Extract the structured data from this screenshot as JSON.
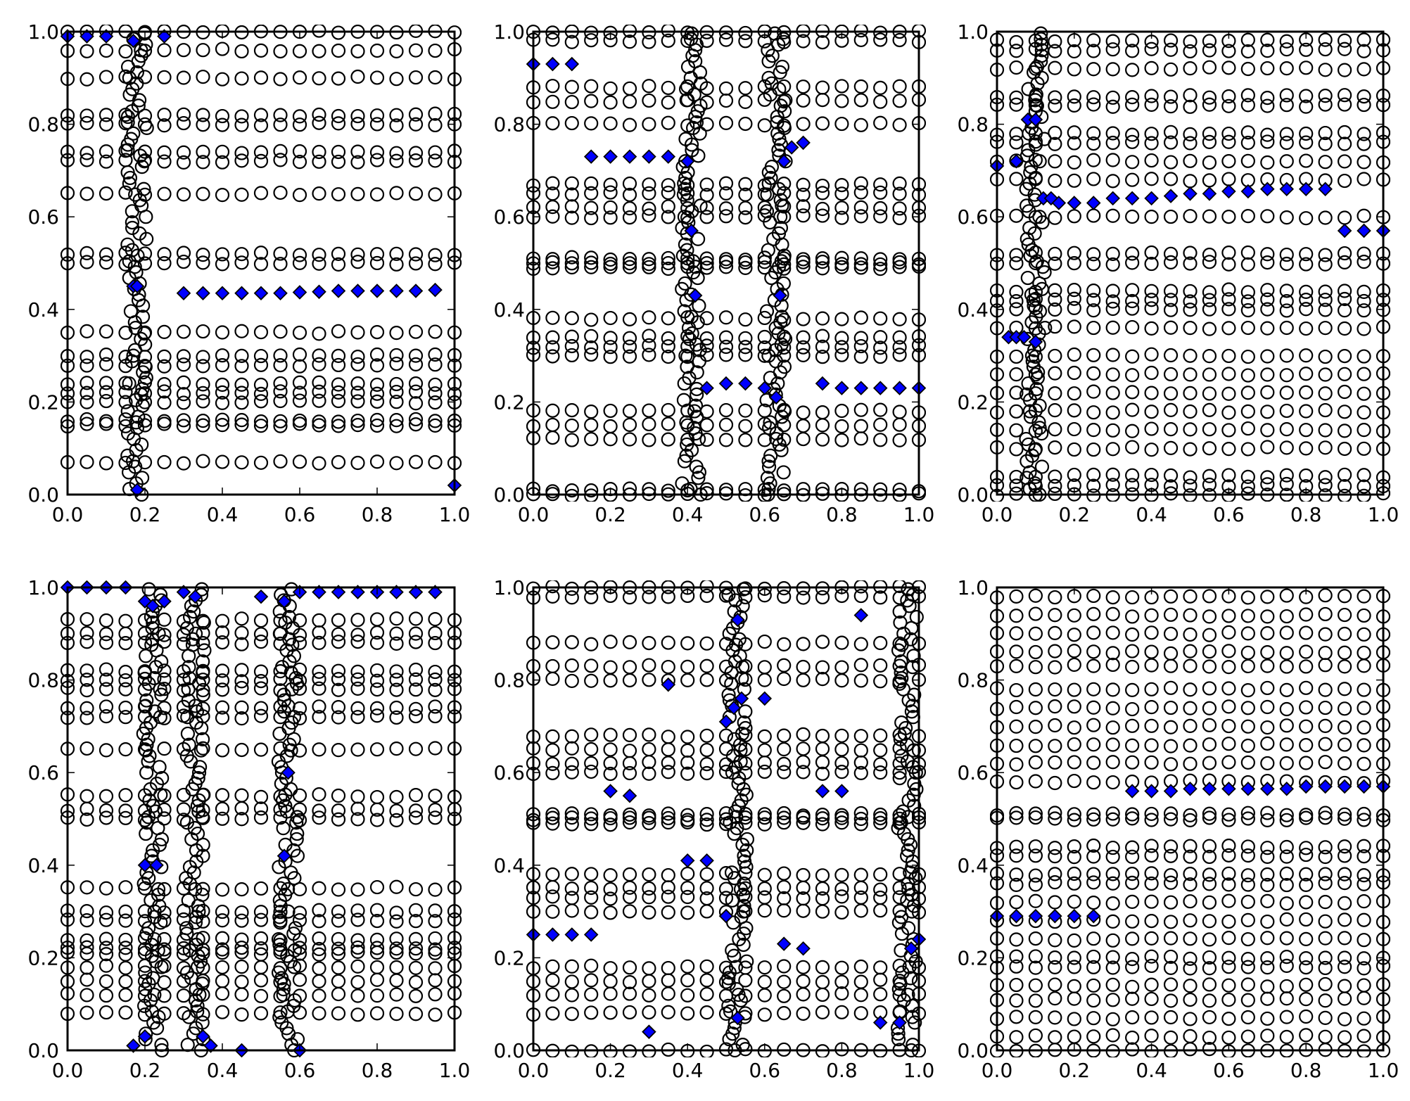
{
  "colors": {
    "marker_fill": "#0000ff",
    "edge": "#000000",
    "background": "#ffffff"
  },
  "tick_labels": [
    "0.0",
    "0.2",
    "0.4",
    "0.6",
    "0.8",
    "1.0"
  ],
  "chart_data": [
    {
      "type": "scatter",
      "title": "",
      "xlabel": "",
      "ylabel": "",
      "xlim": [
        0,
        1
      ],
      "ylim": [
        0,
        1
      ],
      "grid": false,
      "xticks": [
        0,
        0.2,
        0.4,
        0.6,
        0.8,
        1.0
      ],
      "yticks": [
        0,
        0.2,
        0.4,
        0.6,
        0.8,
        1.0
      ],
      "circle_rows": [
        0.07,
        0.15,
        0.16,
        0.2,
        0.22,
        0.24,
        0.28,
        0.3,
        0.35,
        0.5,
        0.52,
        0.65,
        0.72,
        0.74,
        0.8,
        0.82,
        0.9,
        0.96,
        1.0
      ],
      "dense_columns": [
        0.18
      ],
      "diamonds": [
        [
          0,
          0.99
        ],
        [
          0.05,
          0.99
        ],
        [
          0.1,
          0.99
        ],
        [
          0.17,
          0.98
        ],
        [
          0.25,
          0.99
        ],
        [
          0.17,
          0.45
        ],
        [
          0.18,
          0.45
        ],
        [
          0.3,
          0.435
        ],
        [
          0.35,
          0.435
        ],
        [
          0.4,
          0.435
        ],
        [
          0.45,
          0.435
        ],
        [
          0.5,
          0.435
        ],
        [
          0.55,
          0.435
        ],
        [
          0.6,
          0.437
        ],
        [
          0.65,
          0.438
        ],
        [
          0.7,
          0.44
        ],
        [
          0.75,
          0.44
        ],
        [
          0.8,
          0.44
        ],
        [
          0.85,
          0.44
        ],
        [
          0.9,
          0.44
        ],
        [
          0.95,
          0.442
        ],
        [
          0.18,
          0.01
        ],
        [
          1.0,
          0.02
        ]
      ]
    },
    {
      "type": "scatter",
      "title": "",
      "xlabel": "",
      "ylabel": "",
      "xlim": [
        0,
        1
      ],
      "ylim": [
        0,
        1
      ],
      "grid": false,
      "xticks": [
        0,
        0.2,
        0.4,
        0.6,
        0.8,
        1.0
      ],
      "yticks": [
        0,
        0.2,
        0.4,
        0.6,
        0.8,
        1.0
      ],
      "circle_rows": [
        0,
        0.01,
        0.12,
        0.15,
        0.18,
        0.3,
        0.32,
        0.34,
        0.38,
        0.49,
        0.5,
        0.51,
        0.6,
        0.62,
        0.65,
        0.67,
        0.8,
        0.85,
        0.88,
        0.98,
        1.0
      ],
      "dense_columns": [
        0.41,
        0.63
      ],
      "diamonds": [
        [
          0,
          0.93
        ],
        [
          0.05,
          0.93
        ],
        [
          0.1,
          0.93
        ],
        [
          0.15,
          0.73
        ],
        [
          0.2,
          0.73
        ],
        [
          0.25,
          0.73
        ],
        [
          0.3,
          0.73
        ],
        [
          0.35,
          0.73
        ],
        [
          0.4,
          0.72
        ],
        [
          0.41,
          0.57
        ],
        [
          0.42,
          0.43
        ],
        [
          0.45,
          0.23
        ],
        [
          0.5,
          0.24
        ],
        [
          0.55,
          0.24
        ],
        [
          0.6,
          0.23
        ],
        [
          0.63,
          0.21
        ],
        [
          0.64,
          0.43
        ],
        [
          0.65,
          0.72
        ],
        [
          0.67,
          0.75
        ],
        [
          0.7,
          0.76
        ],
        [
          0.75,
          0.24
        ],
        [
          0.8,
          0.23
        ],
        [
          0.85,
          0.23
        ],
        [
          0.9,
          0.23
        ],
        [
          0.95,
          0.23
        ],
        [
          1.0,
          0.23
        ]
      ]
    },
    {
      "type": "scatter",
      "title": "",
      "xlabel": "",
      "ylabel": "",
      "xlim": [
        0,
        1
      ],
      "ylim": [
        0,
        1
      ],
      "grid": false,
      "xticks": [
        0,
        0.2,
        0.4,
        0.6,
        0.8,
        1.0
      ],
      "yticks": [
        0,
        0.2,
        0.4,
        0.6,
        0.8,
        1.0
      ],
      "circle_rows": [
        0,
        0.02,
        0.04,
        0.1,
        0.14,
        0.18,
        0.22,
        0.26,
        0.3,
        0.36,
        0.4,
        0.42,
        0.44,
        0.5,
        0.52,
        0.6,
        0.68,
        0.72,
        0.76,
        0.78,
        0.84,
        0.86,
        0.92,
        0.96,
        0.98
      ],
      "dense_columns": [
        0.1
      ],
      "diamonds": [
        [
          0,
          0.71
        ],
        [
          0.05,
          0.72
        ],
        [
          0.08,
          0.81
        ],
        [
          0.1,
          0.81
        ],
        [
          0.12,
          0.64
        ],
        [
          0.14,
          0.64
        ],
        [
          0.16,
          0.63
        ],
        [
          0.2,
          0.63
        ],
        [
          0.25,
          0.63
        ],
        [
          0.3,
          0.64
        ],
        [
          0.35,
          0.64
        ],
        [
          0.4,
          0.64
        ],
        [
          0.45,
          0.645
        ],
        [
          0.5,
          0.65
        ],
        [
          0.55,
          0.65
        ],
        [
          0.6,
          0.655
        ],
        [
          0.65,
          0.655
        ],
        [
          0.7,
          0.66
        ],
        [
          0.75,
          0.66
        ],
        [
          0.8,
          0.66
        ],
        [
          0.85,
          0.66
        ],
        [
          0.9,
          0.57
        ],
        [
          0.95,
          0.57
        ],
        [
          1.0,
          0.57
        ],
        [
          0.03,
          0.34
        ],
        [
          0.05,
          0.34
        ],
        [
          0.07,
          0.34
        ],
        [
          0.1,
          0.33
        ]
      ]
    },
    {
      "type": "scatter",
      "title": "",
      "xlabel": "",
      "ylabel": "",
      "xlim": [
        0,
        1
      ],
      "ylim": [
        0,
        1
      ],
      "grid": false,
      "xticks": [
        0,
        0.2,
        0.4,
        0.6,
        0.8,
        1.0
      ],
      "yticks": [
        0,
        0.2,
        0.4,
        0.6,
        0.8,
        1.0
      ],
      "circle_rows": [
        0.08,
        0.12,
        0.15,
        0.18,
        0.21,
        0.22,
        0.24,
        0.28,
        0.3,
        0.35,
        0.5,
        0.52,
        0.55,
        0.65,
        0.72,
        0.74,
        0.78,
        0.8,
        0.82,
        0.88,
        0.9,
        0.93
      ],
      "dense_columns": [
        0.22,
        0.33,
        0.57
      ],
      "diamonds": [
        [
          0,
          1.0
        ],
        [
          0.05,
          1.0
        ],
        [
          0.1,
          1.0
        ],
        [
          0.15,
          1.0
        ],
        [
          0.2,
          0.97
        ],
        [
          0.22,
          0.96
        ],
        [
          0.25,
          0.97
        ],
        [
          0.3,
          0.99
        ],
        [
          0.33,
          0.98
        ],
        [
          0.5,
          0.98
        ],
        [
          0.56,
          0.97
        ],
        [
          0.6,
          0.99
        ],
        [
          0.65,
          0.99
        ],
        [
          0.7,
          0.99
        ],
        [
          0.75,
          0.99
        ],
        [
          0.8,
          0.99
        ],
        [
          0.85,
          0.99
        ],
        [
          0.9,
          0.99
        ],
        [
          0.95,
          0.99
        ],
        [
          0.57,
          0.6
        ],
        [
          0.56,
          0.42
        ],
        [
          0.2,
          0.4
        ],
        [
          0.23,
          0.4
        ],
        [
          0.2,
          0.03
        ],
        [
          0.17,
          0.01
        ],
        [
          0.35,
          0.03
        ],
        [
          0.37,
          0.01
        ],
        [
          0.45,
          0.0
        ],
        [
          0.6,
          0.0
        ]
      ]
    },
    {
      "type": "scatter",
      "title": "",
      "xlabel": "",
      "ylabel": "",
      "xlim": [
        0,
        1
      ],
      "ylim": [
        0,
        1
      ],
      "grid": false,
      "xticks": [
        0,
        0.2,
        0.4,
        0.6,
        0.8,
        1.0
      ],
      "yticks": [
        0,
        0.2,
        0.4,
        0.6,
        0.8,
        1.0
      ],
      "circle_rows": [
        0,
        0.08,
        0.12,
        0.15,
        0.18,
        0.3,
        0.33,
        0.35,
        0.38,
        0.49,
        0.5,
        0.51,
        0.6,
        0.62,
        0.65,
        0.68,
        0.8,
        0.83,
        0.88,
        0.98,
        1.0
      ],
      "dense_columns": [
        0.53,
        0.97
      ],
      "diamonds": [
        [
          0,
          0.25
        ],
        [
          0.05,
          0.25
        ],
        [
          0.1,
          0.25
        ],
        [
          0.15,
          0.25
        ],
        [
          0.2,
          0.56
        ],
        [
          0.25,
          0.55
        ],
        [
          0.35,
          0.79
        ],
        [
          0.4,
          0.41
        ],
        [
          0.45,
          0.41
        ],
        [
          0.5,
          0.29
        ],
        [
          0.5,
          0.71
        ],
        [
          0.52,
          0.74
        ],
        [
          0.53,
          0.93
        ],
        [
          0.54,
          0.76
        ],
        [
          0.6,
          0.76
        ],
        [
          0.53,
          0.07
        ],
        [
          0.3,
          0.04
        ],
        [
          0.65,
          0.23
        ],
        [
          0.7,
          0.22
        ],
        [
          0.75,
          0.56
        ],
        [
          0.8,
          0.56
        ],
        [
          0.85,
          0.94
        ],
        [
          0.9,
          0.06
        ],
        [
          0.95,
          0.06
        ],
        [
          0.98,
          0.22
        ],
        [
          1.0,
          0.24
        ]
      ]
    },
    {
      "type": "scatter",
      "title": "",
      "xlabel": "",
      "ylabel": "",
      "xlim": [
        0,
        1
      ],
      "ylim": [
        0,
        1
      ],
      "grid": false,
      "xticks": [
        0,
        0.2,
        0.4,
        0.6,
        0.8,
        1.0
      ],
      "yticks": [
        0,
        0.2,
        0.4,
        0.6,
        0.8,
        1.0
      ],
      "circle_rows": [
        0,
        0.03,
        0.07,
        0.11,
        0.14,
        0.18,
        0.2,
        0.24,
        0.28,
        0.32,
        0.36,
        0.38,
        0.42,
        0.44,
        0.5,
        0.51,
        0.58,
        0.62,
        0.66,
        0.7,
        0.74,
        0.78,
        0.83,
        0.86,
        0.9,
        0.94,
        0.98
      ],
      "dense_columns": [],
      "diamonds": [
        [
          0,
          0.29
        ],
        [
          0.05,
          0.29
        ],
        [
          0.1,
          0.29
        ],
        [
          0.15,
          0.29
        ],
        [
          0.2,
          0.29
        ],
        [
          0.25,
          0.29
        ],
        [
          0.35,
          0.56
        ],
        [
          0.4,
          0.56
        ],
        [
          0.45,
          0.56
        ],
        [
          0.5,
          0.565
        ],
        [
          0.55,
          0.565
        ],
        [
          0.6,
          0.565
        ],
        [
          0.65,
          0.565
        ],
        [
          0.7,
          0.565
        ],
        [
          0.75,
          0.565
        ],
        [
          0.8,
          0.57
        ],
        [
          0.85,
          0.57
        ],
        [
          0.9,
          0.57
        ],
        [
          0.95,
          0.57
        ],
        [
          1.0,
          0.57
        ]
      ]
    }
  ]
}
